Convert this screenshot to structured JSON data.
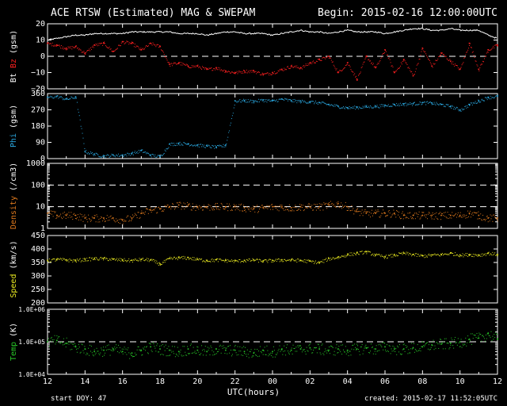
{
  "header": {
    "title": "ACE RTSW (Estimated) MAG & SWEPAM",
    "begin": "Begin: 2015-02-16 12:00:00UTC"
  },
  "footer": {
    "start_doy_label": "start DOY:",
    "start_doy_value": "47",
    "created": "created: 2015-02-17 11:52:05UTC",
    "xlabel": "UTC(hours)"
  },
  "colors": {
    "bt": "#ffffff",
    "bz": "#ff2020",
    "phi": "#2aa8e0",
    "density": "#e07a1e",
    "speed": "#e8e820",
    "temp": "#28c828",
    "axis": "#ffffff"
  },
  "chart_data": [
    {
      "type": "scatter",
      "name": "mag-bt-bz",
      "ylabel_parts": [
        [
          "Bt",
          "#ffffff"
        ],
        [
          "Bz",
          "#ff2020"
        ],
        [
          "(gsm)",
          "#ffffff"
        ]
      ],
      "ylim": [
        -20,
        20
      ],
      "yticks": [
        -20,
        -10,
        0,
        10,
        20
      ],
      "ytick_labels": [
        "−20",
        "−10",
        "0",
        "10",
        "20"
      ],
      "scale": "linear",
      "dashed_lines": [
        0
      ],
      "xlim": [
        0,
        24
      ],
      "series": [
        {
          "name": "Bt",
          "color": "#ffffff",
          "style": "line",
          "x": [
            0,
            0.5,
            1,
            1.5,
            2,
            2.5,
            3,
            3.5,
            4,
            4.5,
            5,
            5.5,
            6,
            6.5,
            7,
            7.5,
            8,
            8.5,
            9,
            9.5,
            10,
            10.5,
            11,
            11.5,
            12,
            12.5,
            13,
            13.5,
            14,
            14.5,
            15,
            15.5,
            16,
            16.5,
            17,
            17.5,
            18,
            18.5,
            19,
            19.5,
            20,
            20.5,
            21,
            21.5,
            22,
            22.5,
            23,
            23.5,
            24
          ],
          "y": [
            10,
            11,
            12,
            13,
            13,
            14,
            14,
            14,
            14,
            15,
            15,
            15,
            15,
            15,
            14,
            14,
            14,
            13,
            14,
            15,
            15,
            14,
            14,
            14,
            13,
            14,
            15,
            16,
            15,
            15,
            14,
            15,
            16,
            15,
            15,
            15,
            14,
            15,
            16,
            17,
            17,
            16,
            16,
            17,
            16,
            16,
            16,
            13,
            11
          ]
        },
        {
          "name": "Bz",
          "color": "#ff2020",
          "style": "points",
          "x": [
            0,
            0.5,
            1,
            1.5,
            2,
            2.5,
            3,
            3.5,
            4,
            4.5,
            5,
            5.5,
            6,
            6.5,
            7,
            7.5,
            8,
            8.5,
            9,
            9.5,
            10,
            10.5,
            11,
            11.5,
            12,
            12.5,
            13,
            13.5,
            14,
            14.5,
            15,
            15.5,
            16,
            16.5,
            17,
            17.5,
            18,
            18.5,
            19,
            19.5,
            20,
            20.5,
            21,
            21.5,
            22,
            22.5,
            23,
            23.5,
            24
          ],
          "y": [
            8,
            7,
            5,
            6,
            2,
            7,
            8,
            3,
            9,
            8,
            4,
            8,
            6,
            -5,
            -4,
            -6,
            -6,
            -8,
            -7,
            -9,
            -10,
            -9,
            -9,
            -11,
            -10,
            -8,
            -6,
            -7,
            -4,
            -2,
            0,
            -10,
            -4,
            -14,
            0,
            -7,
            4,
            -10,
            -2,
            -12,
            5,
            -6,
            2,
            -3,
            -8,
            8,
            -8,
            4,
            7
          ]
        }
      ]
    },
    {
      "type": "scatter",
      "name": "phi",
      "ylabel_parts": [
        [
          "Phi",
          "#2aa8e0"
        ],
        [
          "(gsm)",
          "#ffffff"
        ]
      ],
      "ylim": [
        0,
        360
      ],
      "yticks": [
        0,
        90,
        180,
        270,
        360
      ],
      "ytick_labels": [
        "0",
        "90",
        "180",
        "270",
        "360"
      ],
      "scale": "linear",
      "dashed_lines": [],
      "xlim": [
        0,
        24
      ],
      "series": [
        {
          "name": "Phi",
          "color": "#2aa8e0",
          "style": "points",
          "x": [
            0,
            0.5,
            1,
            1.5,
            2,
            2.5,
            3,
            3.5,
            4,
            4.5,
            5,
            5.5,
            6,
            6.5,
            7,
            7.5,
            8,
            8.5,
            9,
            9.5,
            10,
            10.5,
            11,
            11.5,
            12,
            12.5,
            13,
            13.5,
            14,
            14.5,
            15,
            15.5,
            16,
            16.5,
            17,
            17.5,
            18,
            18.5,
            19,
            19.5,
            20,
            20.5,
            21,
            21.5,
            22,
            22.5,
            23,
            23.5,
            24
          ],
          "y": [
            340,
            345,
            330,
            342,
            40,
            25,
            15,
            20,
            20,
            30,
            45,
            20,
            12,
            80,
            85,
            82,
            75,
            70,
            65,
            75,
            320,
            322,
            318,
            325,
            320,
            330,
            322,
            318,
            315,
            310,
            300,
            290,
            282,
            285,
            288,
            290,
            295,
            300,
            303,
            305,
            310,
            308,
            300,
            290,
            270,
            300,
            320,
            340,
            345
          ]
        }
      ]
    },
    {
      "type": "scatter",
      "name": "density",
      "ylabel_parts": [
        [
          "Density",
          "#e07a1e"
        ],
        [
          "(/cm3)",
          "#ffffff"
        ]
      ],
      "ylim": [
        1,
        1000
      ],
      "yticks": [
        1,
        10,
        100,
        1000
      ],
      "ytick_labels": [
        "1",
        "10",
        "100",
        "1000"
      ],
      "scale": "log",
      "dashed_lines": [
        10,
        100
      ],
      "xlim": [
        0,
        24
      ],
      "series": [
        {
          "name": "Density",
          "color": "#e07a1e",
          "style": "points",
          "x": [
            0,
            0.5,
            1,
            1.5,
            2,
            2.5,
            3,
            3.5,
            4,
            4.5,
            5,
            5.5,
            6,
            6.5,
            7,
            7.5,
            8,
            8.5,
            9,
            9.5,
            10,
            10.5,
            11,
            11.5,
            12,
            12.5,
            13,
            13.5,
            14,
            14.5,
            15,
            15.5,
            16,
            16.5,
            17,
            17.5,
            18,
            18.5,
            19,
            19.5,
            20,
            20.5,
            21,
            21.5,
            22,
            22.5,
            23,
            23.5,
            24
          ],
          "y": [
            5,
            4,
            4,
            4,
            3,
            3,
            3,
            3,
            2.5,
            3,
            5,
            7,
            8,
            10,
            12,
            11,
            10,
            10,
            10,
            10,
            10,
            9,
            8,
            9,
            10,
            10,
            9,
            10,
            10,
            10,
            12,
            14,
            10,
            6,
            5,
            5,
            5,
            5,
            4,
            4,
            4,
            4,
            4,
            4,
            4,
            5,
            4,
            3,
            3
          ]
        }
      ]
    },
    {
      "type": "scatter",
      "name": "speed",
      "ylabel_parts": [
        [
          "Speed",
          "#e8e820"
        ],
        [
          "(km/s)",
          "#ffffff"
        ]
      ],
      "ylim": [
        200,
        450
      ],
      "yticks": [
        200,
        250,
        300,
        350,
        400,
        450
      ],
      "ytick_labels": [
        "200",
        "250",
        "300",
        "350",
        "400",
        "450"
      ],
      "scale": "linear",
      "dashed_lines": [],
      "xlim": [
        0,
        24
      ],
      "series": [
        {
          "name": "Speed",
          "color": "#e8e820",
          "style": "points",
          "x": [
            0,
            0.5,
            1,
            1.5,
            2,
            2.5,
            3,
            3.5,
            4,
            4.5,
            5,
            5.5,
            6,
            6.5,
            7,
            7.5,
            8,
            8.5,
            9,
            9.5,
            10,
            10.5,
            11,
            11.5,
            12,
            12.5,
            13,
            13.5,
            14,
            14.5,
            15,
            15.5,
            16,
            16.5,
            17,
            17.5,
            18,
            18.5,
            19,
            19.5,
            20,
            20.5,
            21,
            21.5,
            22,
            22.5,
            23,
            23.5,
            24
          ],
          "y": [
            358,
            362,
            360,
            358,
            362,
            365,
            365,
            362,
            360,
            358,
            362,
            360,
            345,
            365,
            368,
            368,
            362,
            358,
            360,
            358,
            356,
            358,
            360,
            356,
            358,
            360,
            360,
            358,
            355,
            350,
            365,
            370,
            380,
            385,
            390,
            378,
            372,
            378,
            385,
            380,
            375,
            378,
            380,
            385,
            378,
            380,
            378,
            385,
            380
          ]
        }
      ]
    },
    {
      "type": "scatter",
      "name": "temp",
      "ylabel_parts": [
        [
          "Temp",
          "#28c828"
        ],
        [
          "(K)",
          "#ffffff"
        ]
      ],
      "ylim": [
        10000,
        1000000
      ],
      "yticks": [
        10000,
        100000,
        1000000
      ],
      "ytick_labels": [
        "1.0E+04",
        "1.0E+05",
        "1.0E+06"
      ],
      "scale": "log",
      "dashed_lines": [
        100000
      ],
      "xlim": [
        0,
        24
      ],
      "series": [
        {
          "name": "Temp",
          "color": "#28c828",
          "style": "points",
          "x": [
            0,
            0.5,
            1,
            1.5,
            2,
            2.5,
            3,
            3.5,
            4,
            4.5,
            5,
            5.5,
            6,
            6.5,
            7,
            7.5,
            8,
            8.5,
            9,
            9.5,
            10,
            10.5,
            11,
            11.5,
            12,
            12.5,
            13,
            13.5,
            14,
            14.5,
            15,
            15.5,
            16,
            16.5,
            17,
            17.5,
            18,
            18.5,
            19,
            19.5,
            20,
            20.5,
            21,
            21.5,
            22,
            22.5,
            23,
            23.5,
            24
          ],
          "y": [
            100000,
            110000,
            90000,
            70000,
            60000,
            50000,
            55000,
            60000,
            50000,
            45000,
            55000,
            70000,
            60000,
            55000,
            50000,
            60000,
            55000,
            50000,
            60000,
            55000,
            55000,
            50000,
            45000,
            55000,
            50000,
            60000,
            55000,
            60000,
            65000,
            60000,
            55000,
            60000,
            55000,
            60000,
            65000,
            60000,
            70000,
            60000,
            60000,
            65000,
            70000,
            80000,
            85000,
            90000,
            100000,
            120000,
            130000,
            180000,
            120000
          ]
        }
      ]
    }
  ],
  "x_axis": {
    "tick_labels": [
      "12",
      "14",
      "16",
      "18",
      "20",
      "22",
      "00",
      "02",
      "04",
      "06",
      "08",
      "10",
      "12"
    ]
  }
}
